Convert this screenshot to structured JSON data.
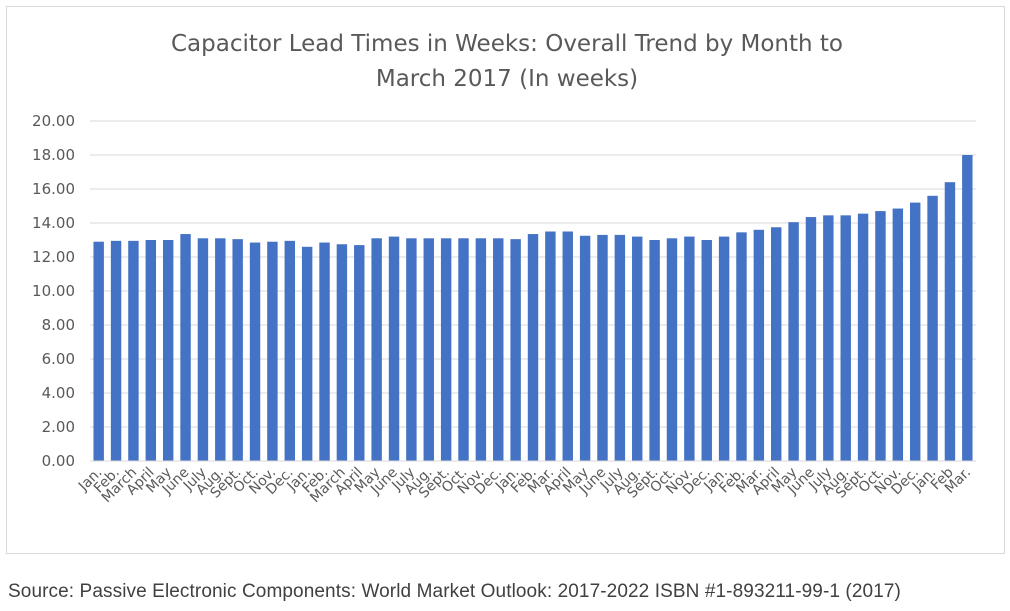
{
  "chart_data": {
    "type": "bar",
    "title_line1": "Capacitor Lead Times in Weeks: Overall Trend by Month  to",
    "title_line2": "March 2017  (In weeks)",
    "ylim": [
      0,
      20
    ],
    "yticks": [
      "0.00",
      "2.00",
      "4.00",
      "6.00",
      "8.00",
      "10.00",
      "12.00",
      "14.00",
      "16.00",
      "18.00",
      "20.00"
    ],
    "categories": [
      "Jan.",
      "Feb.",
      "March",
      "April",
      "May",
      "June",
      "July",
      "Aug.",
      "Sept.",
      "Oct.",
      "Nov.",
      "Dec.",
      "Jan.",
      "Feb.",
      "March",
      "April",
      "May",
      "June",
      "July",
      "Aug.",
      "Sept.",
      "Oct.",
      "Nov.",
      "Dec.",
      "Jan.",
      "Feb.",
      "Mar.",
      "April",
      "May",
      "June",
      "July",
      "Aug.",
      "Sept.",
      "Oct.",
      "Nov.",
      "Dec.",
      "Jan.",
      "Feb.",
      "Mar.",
      "April",
      "May",
      "June",
      "July",
      "Aug.",
      "Sept.",
      "Oct.",
      "Nov.",
      "Dec.",
      "Jan.",
      "Feb",
      "Mar."
    ],
    "values": [
      12.9,
      12.95,
      12.95,
      13.0,
      13.0,
      13.35,
      13.1,
      13.1,
      13.05,
      12.85,
      12.9,
      12.95,
      12.6,
      12.85,
      12.75,
      12.7,
      13.1,
      13.2,
      13.1,
      13.1,
      13.1,
      13.1,
      13.1,
      13.1,
      13.05,
      13.35,
      13.5,
      13.5,
      13.25,
      13.3,
      13.3,
      13.2,
      13.0,
      13.1,
      13.2,
      13.0,
      13.2,
      13.45,
      13.6,
      13.75,
      14.05,
      14.35,
      14.45,
      14.45,
      14.55,
      14.7,
      14.85,
      15.2,
      15.6,
      16.4,
      18.0
    ],
    "bar_color": "#4472c4",
    "gridline_color": "#d9d9d9",
    "grid": true,
    "legend": "none"
  },
  "source": "Source: Passive Electronic Components: World Market Outlook: 2017-2022 ISBN #1-893211-99-1 (2017)"
}
